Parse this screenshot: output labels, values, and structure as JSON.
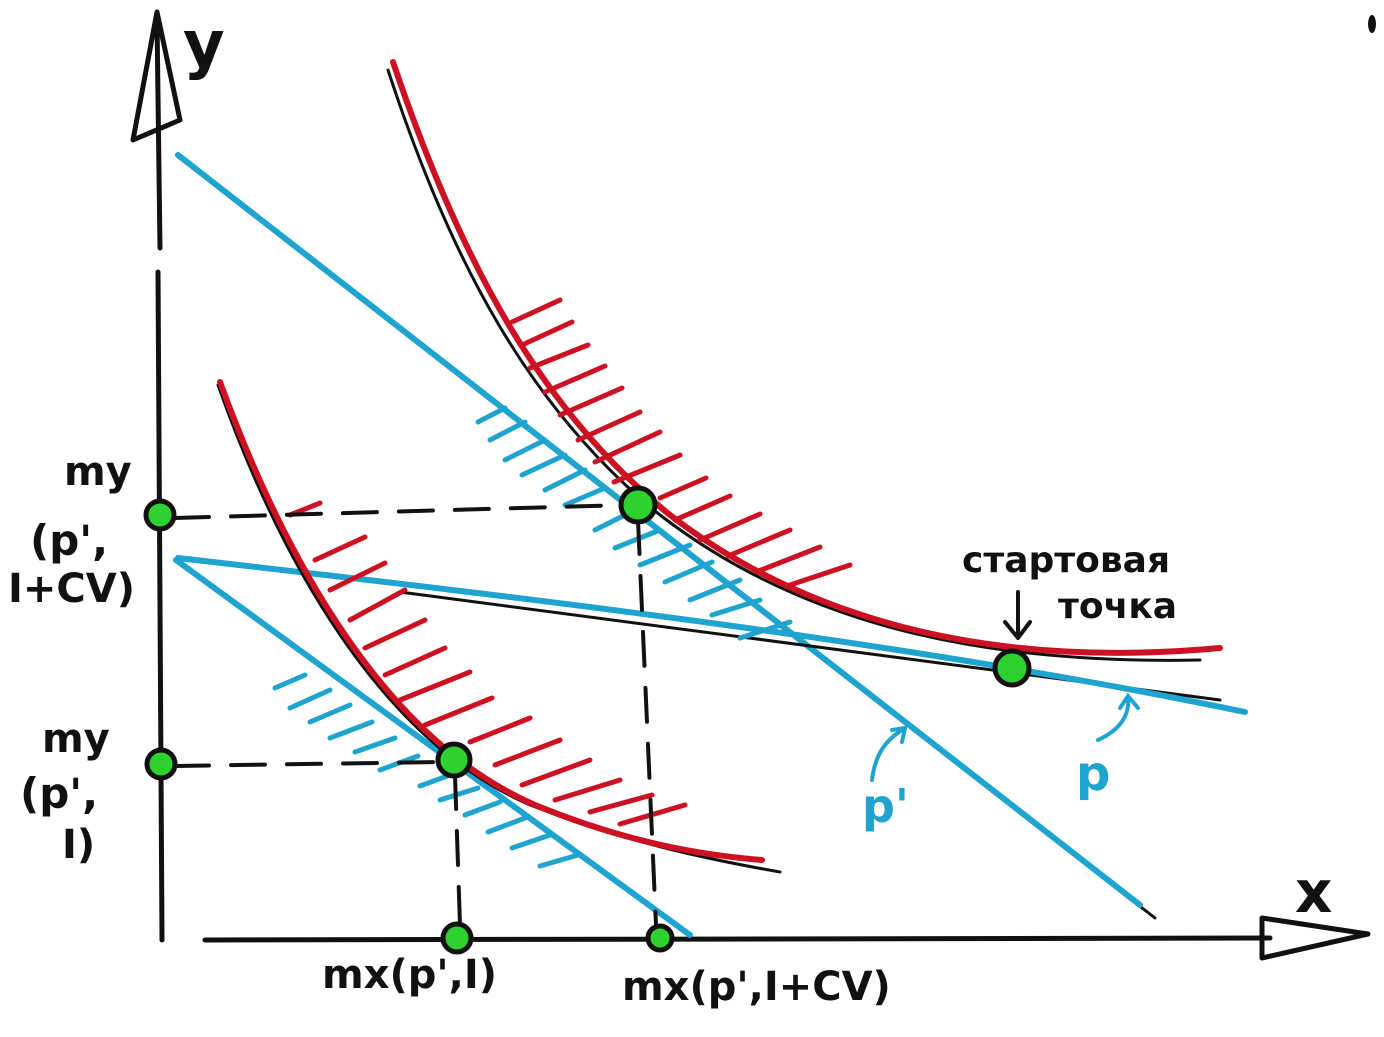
{
  "axes": {
    "y_label": "y",
    "x_label": "x"
  },
  "labels": {
    "my_upper_line1": "my",
    "my_upper_line2": "(p',",
    "my_upper_line3": "I+CV)",
    "my_lower_line1": "my",
    "my_lower_line2": "(p',",
    "my_lower_line3": "I)",
    "mx_left": "mx(p',I)",
    "mx_right": "mx(p',I+CV)",
    "start_point_line1": "стартовая",
    "start_point_line2": "точка",
    "budget_p_prime": "p'",
    "budget_p": "p"
  },
  "colors": {
    "indifference_curve": "#cc1122",
    "budget_line": "#1fa3cf",
    "point_fill": "#2fd12f",
    "ink": "#111111"
  }
}
